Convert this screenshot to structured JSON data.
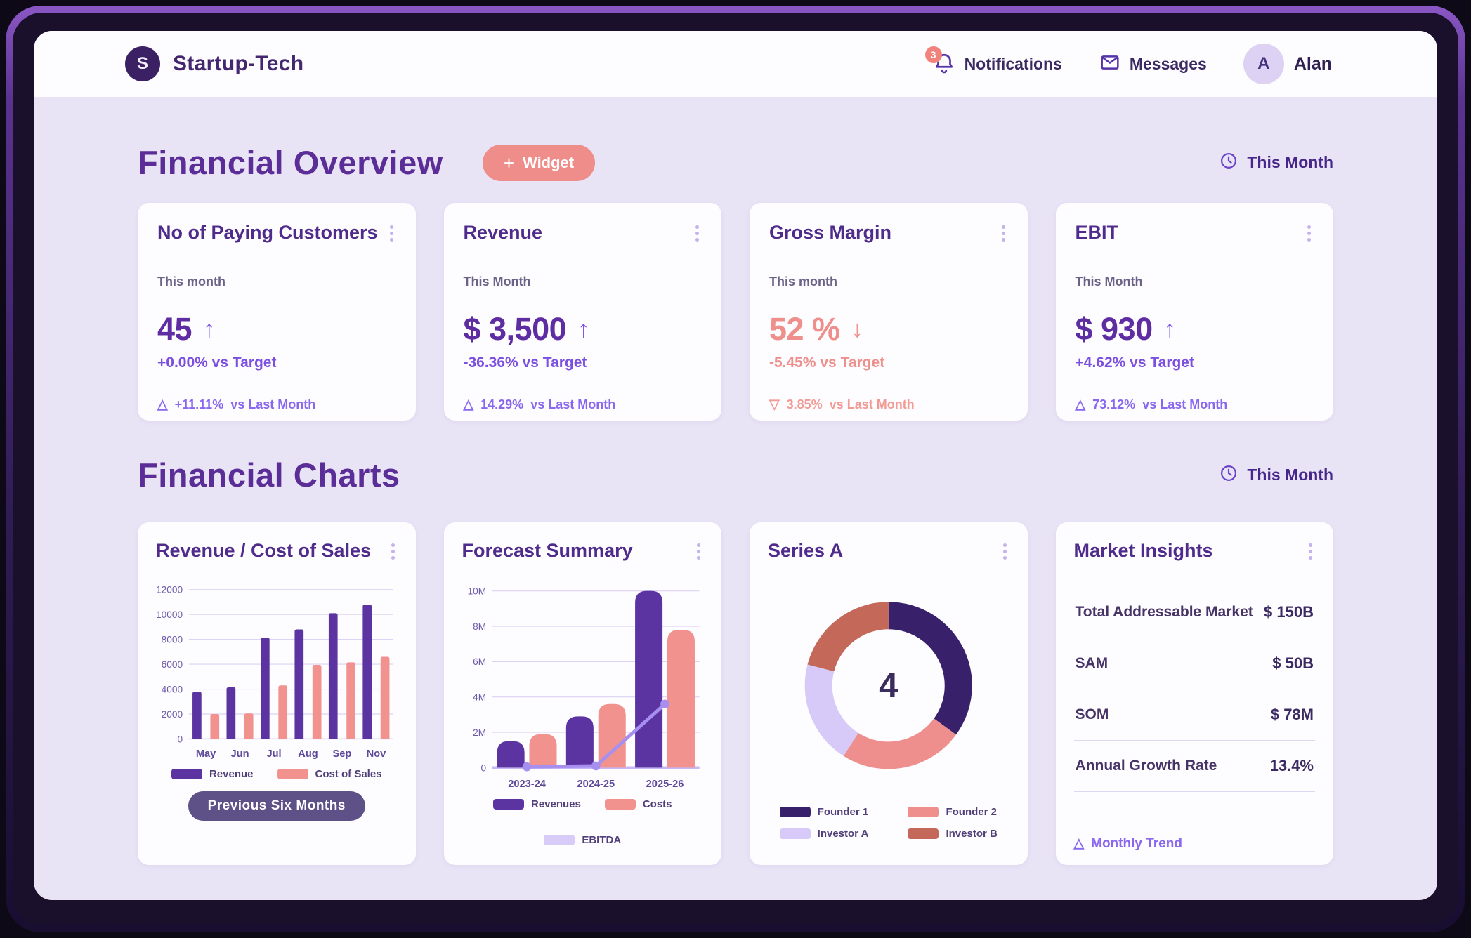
{
  "header": {
    "logo_letter": "S",
    "app_name": "Startup-Tech",
    "notifications_count": "3",
    "notifications_label": "Notifications",
    "messages_label": "Messages",
    "user_initial": "A",
    "user_name": "Alan"
  },
  "overview": {
    "title": "Financial Overview",
    "widget_plus": "+",
    "widget_button_label": "Widget",
    "period_label": "This Month",
    "cards": [
      {
        "title": "No of Paying Customers",
        "subtitle": "This month",
        "value": "45",
        "trend": "up",
        "tone": "purple",
        "vs_target": "+0.00% vs Target",
        "last_month_pct": "+11.11%",
        "last_month_label": "vs Last Month"
      },
      {
        "title": "Revenue",
        "subtitle": "This Month",
        "value": "$ 3,500",
        "trend": "up",
        "tone": "purple",
        "vs_target": "-36.36% vs Target",
        "last_month_pct": "14.29%",
        "last_month_label": "vs Last Month"
      },
      {
        "title": "Gross Margin",
        "subtitle": "This month",
        "value": "52 %",
        "trend": "down",
        "tone": "salmon",
        "vs_target": "-5.45% vs Target",
        "last_month_pct": "3.85%",
        "last_month_label": "vs Last Month"
      },
      {
        "title": "EBIT",
        "subtitle": "This Month",
        "value": "$ 930",
        "trend": "up",
        "tone": "purple",
        "vs_target": "+4.62% vs Target",
        "last_month_pct": "73.12%",
        "last_month_label": "vs Last Month"
      }
    ]
  },
  "charts_section": {
    "title": "Financial Charts",
    "period_label": "This Month"
  },
  "chart_data": [
    {
      "id": "revenue_cost_of_sales",
      "type": "bar",
      "title": "Revenue / Cost of Sales",
      "categories": [
        "May",
        "Jun",
        "Jul",
        "Aug",
        "Sep",
        "Nov"
      ],
      "series": [
        {
          "name": "Revenue",
          "color": "#5b34a2",
          "values": [
            3800,
            4150,
            8150,
            8800,
            10100,
            10800
          ]
        },
        {
          "name": "Cost of Sales",
          "color": "#f2928e",
          "values": [
            2000,
            2050,
            4300,
            5950,
            6150,
            6600
          ]
        }
      ],
      "ylim": [
        0,
        12000
      ],
      "ytick_step": 2000,
      "grid": true,
      "legend_position": "bottom",
      "footer_button": "Previous Six Months"
    },
    {
      "id": "forecast_summary",
      "type": "bar",
      "title": "Forecast Summary",
      "categories": [
        "2023-24",
        "2024-25",
        "2025-26"
      ],
      "series": [
        {
          "name": "Revenues",
          "color": "#5b34a2",
          "render": "bar",
          "values": [
            1500000,
            2900000,
            10000000
          ]
        },
        {
          "name": "Costs",
          "color": "#f2928e",
          "render": "bar",
          "values": [
            1900000,
            3600000,
            7800000
          ]
        },
        {
          "name": "EBITDA",
          "color": "#a78ff0",
          "swatch": "#d7cbf8",
          "render": "line",
          "values": [
            50000,
            100000,
            3600000
          ]
        }
      ],
      "ylim": [
        0,
        10000000
      ],
      "ytick_step": 2000000,
      "ytick_suffix": "M",
      "grid": true,
      "legend_position": "bottom"
    },
    {
      "id": "series_a",
      "type": "pie",
      "title": "Series A",
      "center_label": "4",
      "slices": [
        {
          "name": "Founder 1",
          "color": "#38216a",
          "value": 35
        },
        {
          "name": "Founder 2",
          "color": "#ef8f8d",
          "value": 24
        },
        {
          "name": "Investor A",
          "color": "#d7c9f8",
          "value": 20
        },
        {
          "name": "Investor B",
          "color": "#c4685a",
          "value": 21
        }
      ],
      "legend_position": "bottom"
    },
    {
      "id": "market_insights",
      "type": "table",
      "title": "Market Insights",
      "rows": [
        {
          "label": "Total Addressable Market",
          "value": "$ 150B"
        },
        {
          "label": "SAM",
          "value": "$ 50B"
        },
        {
          "label": "SOM",
          "value": "$ 78M"
        },
        {
          "label": "Annual Growth Rate",
          "value": "13.4%"
        }
      ],
      "footer_link": "Monthly Trend"
    }
  ]
}
